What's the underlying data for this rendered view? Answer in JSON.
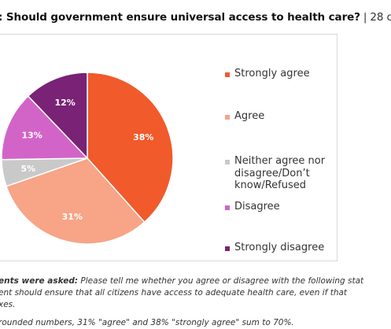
{
  "title": {
    "question": ": Should government ensure universal access to health care?",
    "separator": "|",
    "rest": "28 co"
  },
  "chart_data": {
    "type": "pie",
    "slices": [
      {
        "label": "Strongly agree",
        "value": 38,
        "display": "38%",
        "color": "#f15a2b"
      },
      {
        "label": "Agree",
        "value": 31,
        "display": "31%",
        "color": "#f7a487"
      },
      {
        "label": "Neither agree nor disagree/Don’t know/Refused",
        "value": 5,
        "display": "5%",
        "color": "#c9c9c9"
      },
      {
        "label": "Disagree",
        "value": 13,
        "display": "13%",
        "color": "#d264c8"
      },
      {
        "label": "Strongly disagree",
        "value": 12,
        "display": "12%",
        "color": "#7a2275"
      }
    ],
    "legend": {
      "position": "right",
      "items": [
        {
          "lines": [
            "Strongly agree"
          ],
          "color": "#f15a2b"
        },
        {
          "lines": [
            "Agree"
          ],
          "color": "#f7a487"
        },
        {
          "lines": [
            "Neither agree nor",
            "disagree/Don’t",
            "know/Refused"
          ],
          "color": "#c9c9c9"
        },
        {
          "lines": [
            "Disagree"
          ],
          "color": "#d264c8"
        },
        {
          "lines": [
            "Strongly disagree"
          ],
          "color": "#7a2275"
        }
      ]
    }
  },
  "notes": {
    "asked_lead": "ents were asked:",
    "asked_text": " Please tell me whether you agree or disagree with the following stat",
    "line2": "ent should ensure that all citizens have access to adequate health care, even if that",
    "line3": "xes.",
    "rounding": "rounded numbers, 31% \"agree\" and 38% \"strongly agree\" sum to 70%."
  }
}
